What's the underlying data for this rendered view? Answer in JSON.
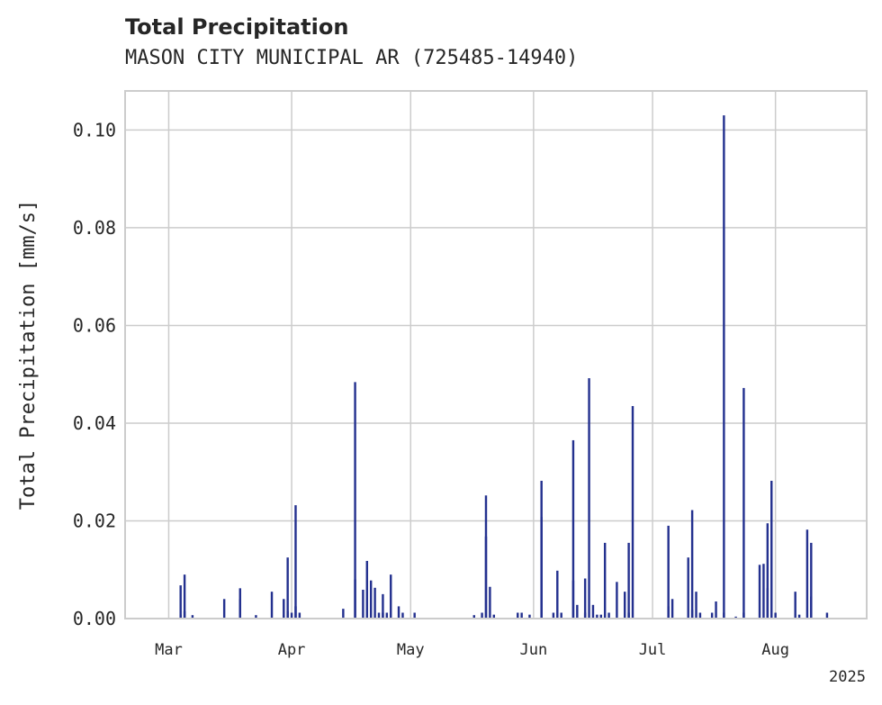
{
  "chart_data": {
    "type": "bar",
    "title": "Total Precipitation",
    "subtitle": "MASON CITY MUNICIPAL AR (725485-14940)",
    "ylabel": "Total Precipitation [mm/s]",
    "xlabel": "",
    "year_label": "2025",
    "ylim": [
      0,
      0.108
    ],
    "xlim": [
      "2025-02-18",
      "2025-08-24"
    ],
    "grid": true,
    "color": "#24318f",
    "yticks": [
      {
        "value": 0.0,
        "label": "0.00"
      },
      {
        "value": 0.02,
        "label": "0.02"
      },
      {
        "value": 0.04,
        "label": "0.04"
      },
      {
        "value": 0.06,
        "label": "0.06"
      },
      {
        "value": 0.08,
        "label": "0.08"
      },
      {
        "value": 0.1,
        "label": "0.10"
      }
    ],
    "xticks": [
      {
        "date": "2025-03-01",
        "label": "Mar"
      },
      {
        "date": "2025-04-01",
        "label": "Apr"
      },
      {
        "date": "2025-05-01",
        "label": "May"
      },
      {
        "date": "2025-06-01",
        "label": "Jun"
      },
      {
        "date": "2025-07-01",
        "label": "Jul"
      },
      {
        "date": "2025-08-01",
        "label": "Aug"
      }
    ],
    "x": [
      "2025-03-04",
      "2025-03-04",
      "2025-03-05",
      "2025-03-05",
      "2025-03-07",
      "2025-03-15",
      "2025-03-19",
      "2025-03-19",
      "2025-03-23",
      "2025-03-27",
      "2025-03-30",
      "2025-03-30",
      "2025-03-31",
      "2025-03-31",
      "2025-04-01",
      "2025-04-02",
      "2025-04-02",
      "2025-04-03",
      "2025-04-14",
      "2025-04-17",
      "2025-04-17",
      "2025-04-19",
      "2025-04-20",
      "2025-04-21",
      "2025-04-22",
      "2025-04-23",
      "2025-04-24",
      "2025-04-24",
      "2025-04-25",
      "2025-04-26",
      "2025-04-28",
      "2025-04-29",
      "2025-05-02",
      "2025-05-17",
      "2025-05-19",
      "2025-05-20",
      "2025-05-20",
      "2025-05-21",
      "2025-05-22",
      "2025-05-28",
      "2025-05-29",
      "2025-05-31",
      "2025-06-03",
      "2025-06-03",
      "2025-06-06",
      "2025-06-07",
      "2025-06-08",
      "2025-06-11",
      "2025-06-11",
      "2025-06-12",
      "2025-06-14",
      "2025-06-14",
      "2025-06-15",
      "2025-06-16",
      "2025-06-17",
      "2025-06-18",
      "2025-06-19",
      "2025-06-20",
      "2025-06-22",
      "2025-06-24",
      "2025-06-25",
      "2025-06-25",
      "2025-06-26",
      "2025-07-05",
      "2025-07-05",
      "2025-07-06",
      "2025-07-10",
      "2025-07-11",
      "2025-07-11",
      "2025-07-12",
      "2025-07-13",
      "2025-07-16",
      "2025-07-17",
      "2025-07-19",
      "2025-07-19",
      "2025-07-22",
      "2025-07-24",
      "2025-07-24",
      "2025-07-28",
      "2025-07-29",
      "2025-07-30",
      "2025-07-30",
      "2025-07-31",
      "2025-08-01",
      "2025-08-06",
      "2025-08-07",
      "2025-08-09",
      "2025-08-10",
      "2025-08-10",
      "2025-08-14"
    ],
    "values": [
      0.0008,
      0.0068,
      0.009,
      0.0015,
      0.0007,
      0.004,
      0.0062,
      0.004,
      0.0007,
      0.0055,
      0.0007,
      0.004,
      0.0125,
      0.0015,
      0.0012,
      0.0025,
      0.0232,
      0.0012,
      0.002,
      0.008,
      0.0484,
      0.0059,
      0.0118,
      0.0078,
      0.0063,
      0.0012,
      0.0012,
      0.005,
      0.0012,
      0.009,
      0.0025,
      0.0012,
      0.0012,
      0.0007,
      0.0012,
      0.0168,
      0.0252,
      0.0065,
      0.0008,
      0.0012,
      0.0012,
      0.0008,
      0.0282,
      0.0208,
      0.0012,
      0.0098,
      0.0012,
      0.0078,
      0.0365,
      0.0028,
      0.0082,
      0.0012,
      0.0492,
      0.0028,
      0.0008,
      0.0008,
      0.0155,
      0.0012,
      0.0075,
      0.0055,
      0.0155,
      0.0012,
      0.0435,
      0.0025,
      0.019,
      0.004,
      0.0125,
      0.0222,
      0.0018,
      0.0055,
      0.0012,
      0.0012,
      0.0035,
      0.0012,
      0.103,
      0.0004,
      0.0012,
      0.0472,
      0.011,
      0.0112,
      0.0195,
      0.0062,
      0.0282,
      0.0012,
      0.0055,
      0.0008,
      0.0182,
      0.0155,
      0.0045,
      0.0012
    ]
  }
}
